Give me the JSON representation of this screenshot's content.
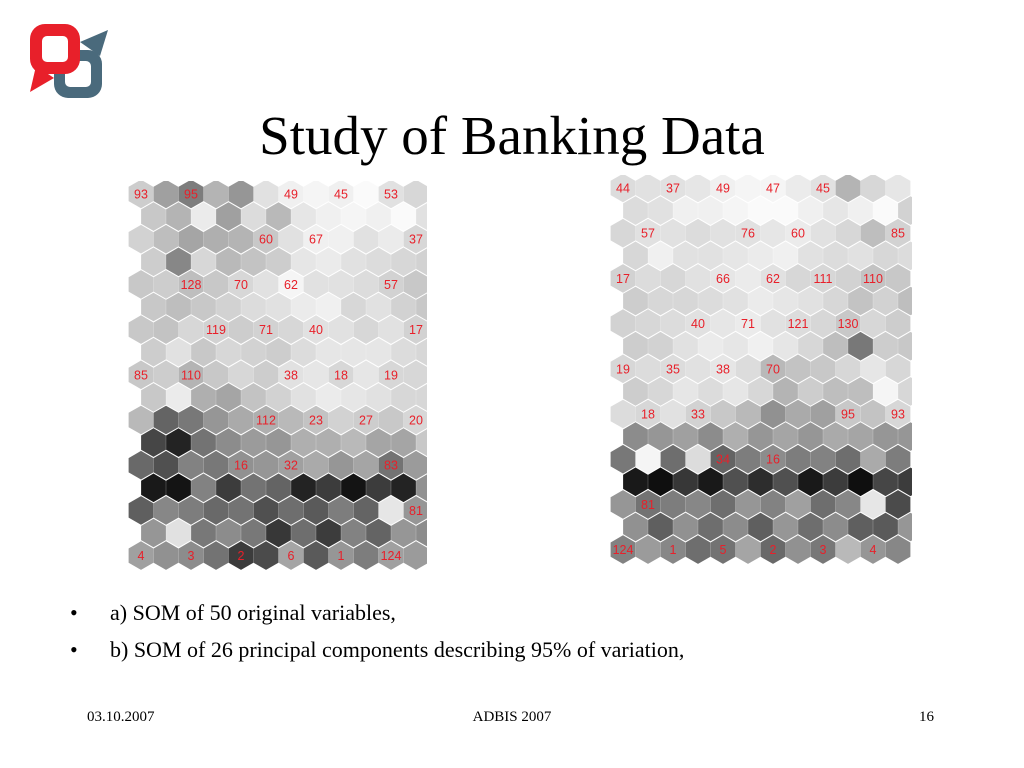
{
  "slide": {
    "title": "Study of Banking Data",
    "bullets": [
      "a) SOM of 50 original variables,",
      "b) SOM of 26 principal components describing 95% of variation,"
    ],
    "bullet_symbol": "•",
    "footer": {
      "date": "03.10.2007",
      "conference": "ADBIS 2007",
      "page": "16"
    }
  },
  "colors": {
    "label": "#e8202a",
    "logo_red": "#e8202a",
    "logo_gray": "#4a6a7c"
  },
  "maps": [
    {
      "id": "a",
      "cols": 12,
      "rows": 17,
      "first_row_offset": false,
      "labels": [
        {
          "row": 0,
          "col": 0,
          "text": "93"
        },
        {
          "row": 0,
          "col": 2,
          "text": "95"
        },
        {
          "row": 0,
          "col": 6,
          "text": "49"
        },
        {
          "row": 0,
          "col": 8,
          "text": "45"
        },
        {
          "row": 0,
          "col": 10,
          "text": "53"
        },
        {
          "row": 2,
          "col": 5,
          "text": "60"
        },
        {
          "row": 2,
          "col": 7,
          "text": "67"
        },
        {
          "row": 2,
          "col": 11,
          "text": "37"
        },
        {
          "row": 4,
          "col": 2,
          "text": "128"
        },
        {
          "row": 4,
          "col": 4,
          "text": "70"
        },
        {
          "row": 4,
          "col": 6,
          "text": "62"
        },
        {
          "row": 4,
          "col": 10,
          "text": "57"
        },
        {
          "row": 6,
          "col": 3,
          "text": "119"
        },
        {
          "row": 6,
          "col": 5,
          "text": "71"
        },
        {
          "row": 6,
          "col": 7,
          "text": "40"
        },
        {
          "row": 6,
          "col": 11,
          "text": "17"
        },
        {
          "row": 8,
          "col": 0,
          "text": "85"
        },
        {
          "row": 8,
          "col": 2,
          "text": "110"
        },
        {
          "row": 8,
          "col": 6,
          "text": "38"
        },
        {
          "row": 8,
          "col": 8,
          "text": "18"
        },
        {
          "row": 8,
          "col": 10,
          "text": "19"
        },
        {
          "row": 10,
          "col": 5,
          "text": "112"
        },
        {
          "row": 10,
          "col": 7,
          "text": "23"
        },
        {
          "row": 10,
          "col": 9,
          "text": "27"
        },
        {
          "row": 10,
          "col": 11,
          "text": "20"
        },
        {
          "row": 12,
          "col": 4,
          "text": "16"
        },
        {
          "row": 12,
          "col": 6,
          "text": "32"
        },
        {
          "row": 12,
          "col": 10,
          "text": "83"
        },
        {
          "row": 14,
          "col": 11,
          "text": "81"
        },
        {
          "row": 16,
          "col": 0,
          "text": "4"
        },
        {
          "row": 16,
          "col": 2,
          "text": "3"
        },
        {
          "row": 16,
          "col": 4,
          "text": "2"
        },
        {
          "row": 16,
          "col": 6,
          "text": "6"
        },
        {
          "row": 16,
          "col": 8,
          "text": "1"
        },
        {
          "row": 16,
          "col": 10,
          "text": "124"
        }
      ],
      "shades": [
        [
          205,
          160,
          125,
          180,
          150,
          225,
          240,
          245,
          240,
          250,
          225,
          215
        ],
        [
          200,
          180,
          235,
          160,
          220,
          185,
          230,
          240,
          245,
          240,
          250,
          225
        ],
        [
          210,
          190,
          165,
          175,
          180,
          200,
          225,
          240,
          240,
          225,
          235,
          215
        ],
        [
          205,
          135,
          215,
          185,
          195,
          205,
          230,
          235,
          225,
          220,
          215,
          210
        ],
        [
          200,
          205,
          190,
          200,
          215,
          225,
          245,
          225,
          225,
          220,
          210,
          200
        ],
        [
          200,
          190,
          200,
          210,
          220,
          225,
          235,
          240,
          215,
          225,
          210,
          200
        ],
        [
          200,
          195,
          215,
          210,
          205,
          210,
          215,
          225,
          225,
          215,
          225,
          210
        ],
        [
          205,
          225,
          200,
          215,
          210,
          205,
          220,
          230,
          230,
          230,
          220,
          215
        ],
        [
          200,
          205,
          180,
          200,
          215,
          205,
          225,
          230,
          215,
          230,
          215,
          215
        ],
        [
          200,
          235,
          175,
          165,
          195,
          210,
          225,
          235,
          230,
          225,
          215,
          215
        ],
        [
          185,
          100,
          120,
          150,
          170,
          175,
          185,
          195,
          210,
          205,
          200,
          215
        ],
        [
          70,
          35,
          115,
          140,
          155,
          150,
          175,
          175,
          185,
          165,
          165,
          200
        ],
        [
          105,
          80,
          130,
          120,
          145,
          150,
          160,
          170,
          150,
          165,
          115,
          155
        ],
        [
          25,
          20,
          130,
          60,
          115,
          100,
          35,
          60,
          20,
          60,
          35,
          145
        ],
        [
          95,
          135,
          125,
          105,
          115,
          80,
          110,
          90,
          125,
          100,
          230,
          150
        ],
        [
          150,
          225,
          120,
          140,
          120,
          55,
          110,
          60,
          130,
          100,
          150,
          140
        ],
        [
          160,
          145,
          140,
          115,
          60,
          75,
          165,
          90,
          150,
          125,
          160,
          155
        ]
      ]
    },
    {
      "id": "b",
      "cols": 12,
      "rows": 17,
      "first_row_offset": false,
      "labels": [
        {
          "row": 0,
          "col": 0,
          "text": "44"
        },
        {
          "row": 0,
          "col": 2,
          "text": "37"
        },
        {
          "row": 0,
          "col": 4,
          "text": "49"
        },
        {
          "row": 0,
          "col": 6,
          "text": "47"
        },
        {
          "row": 0,
          "col": 8,
          "text": "45"
        },
        {
          "row": 2,
          "col": 1,
          "text": "57"
        },
        {
          "row": 2,
          "col": 5,
          "text": "76"
        },
        {
          "row": 2,
          "col": 7,
          "text": "60"
        },
        {
          "row": 2,
          "col": 11,
          "text": "85"
        },
        {
          "row": 4,
          "col": 0,
          "text": "17"
        },
        {
          "row": 4,
          "col": 4,
          "text": "66"
        },
        {
          "row": 4,
          "col": 6,
          "text": "62"
        },
        {
          "row": 4,
          "col": 8,
          "text": "111"
        },
        {
          "row": 4,
          "col": 10,
          "text": "110"
        },
        {
          "row": 6,
          "col": 3,
          "text": "40"
        },
        {
          "row": 6,
          "col": 5,
          "text": "71"
        },
        {
          "row": 6,
          "col": 7,
          "text": "121"
        },
        {
          "row": 6,
          "col": 9,
          "text": "130"
        },
        {
          "row": 8,
          "col": 0,
          "text": "19"
        },
        {
          "row": 8,
          "col": 2,
          "text": "35"
        },
        {
          "row": 8,
          "col": 4,
          "text": "38"
        },
        {
          "row": 8,
          "col": 6,
          "text": "70"
        },
        {
          "row": 10,
          "col": 1,
          "text": "18"
        },
        {
          "row": 10,
          "col": 3,
          "text": "33"
        },
        {
          "row": 10,
          "col": 9,
          "text": "95"
        },
        {
          "row": 10,
          "col": 11,
          "text": "93"
        },
        {
          "row": 12,
          "col": 4,
          "text": "34"
        },
        {
          "row": 12,
          "col": 6,
          "text": "16"
        },
        {
          "row": 14,
          "col": 1,
          "text": "81"
        },
        {
          "row": 16,
          "col": 0,
          "text": "124"
        },
        {
          "row": 16,
          "col": 2,
          "text": "1"
        },
        {
          "row": 16,
          "col": 4,
          "text": "5"
        },
        {
          "row": 16,
          "col": 6,
          "text": "2"
        },
        {
          "row": 16,
          "col": 8,
          "text": "3"
        },
        {
          "row": 16,
          "col": 10,
          "text": "4"
        }
      ],
      "shades": [
        [
          220,
          225,
          225,
          230,
          240,
          245,
          245,
          235,
          225,
          180,
          215,
          230
        ],
        [
          220,
          225,
          240,
          240,
          245,
          250,
          250,
          240,
          230,
          240,
          250,
          210
        ],
        [
          215,
          225,
          225,
          220,
          225,
          225,
          230,
          235,
          225,
          215,
          190,
          210
        ],
        [
          215,
          240,
          225,
          225,
          230,
          235,
          240,
          225,
          220,
          225,
          215,
          220
        ],
        [
          210,
          220,
          215,
          225,
          230,
          235,
          225,
          215,
          215,
          210,
          195,
          200
        ],
        [
          205,
          215,
          215,
          220,
          225,
          235,
          230,
          225,
          215,
          195,
          210,
          190
        ],
        [
          210,
          215,
          220,
          225,
          230,
          235,
          225,
          220,
          215,
          200,
          215,
          205
        ],
        [
          205,
          210,
          225,
          235,
          230,
          240,
          230,
          215,
          190,
          120,
          205,
          200
        ],
        [
          215,
          220,
          220,
          225,
          230,
          220,
          185,
          195,
          200,
          215,
          230,
          215
        ],
        [
          205,
          215,
          230,
          220,
          230,
          215,
          180,
          205,
          190,
          190,
          245,
          215
        ],
        [
          220,
          215,
          225,
          210,
          200,
          185,
          145,
          170,
          160,
          200,
          195,
          215
        ],
        [
          140,
          150,
          160,
          140,
          175,
          150,
          165,
          150,
          170,
          165,
          150,
          150
        ],
        [
          120,
          245,
          110,
          220,
          100,
          125,
          140,
          125,
          130,
          110,
          170,
          125
        ],
        [
          25,
          15,
          55,
          25,
          80,
          45,
          80,
          25,
          60,
          15,
          70,
          60
        ],
        [
          150,
          115,
          125,
          135,
          110,
          150,
          130,
          160,
          110,
          135,
          230,
          75
        ],
        [
          145,
          95,
          145,
          110,
          140,
          95,
          150,
          110,
          140,
          95,
          90,
          150
        ],
        [
          130,
          155,
          135,
          110,
          115,
          165,
          105,
          145,
          120,
          185,
          150,
          135
        ]
      ]
    }
  ]
}
